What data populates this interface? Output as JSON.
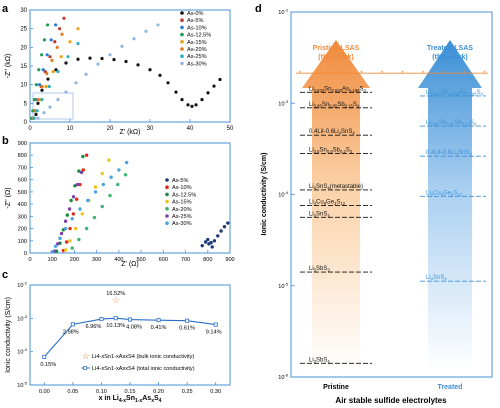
{
  "chart_data": [
    {
      "panel": "a",
      "type": "scatter",
      "xlabel": "Z' (kΩ)",
      "ylabel": "-Z'' (kΩ)",
      "xlim": [
        0,
        50
      ],
      "ylim": [
        0,
        30
      ],
      "xticks": [
        0,
        10,
        20,
        30,
        40,
        50
      ],
      "yticks": [
        0,
        5,
        10,
        15,
        20,
        25,
        30
      ],
      "legend": "top-right",
      "series": [
        {
          "name": "As-0%",
          "color": "#111111",
          "points": [
            [
              1.5,
              2
            ],
            [
              2,
              5
            ],
            [
              3,
              8.5
            ],
            [
              4.5,
              11.5
            ],
            [
              6.5,
              14
            ],
            [
              9,
              15.8
            ],
            [
              12,
              16.8
            ],
            [
              15,
              17.1
            ],
            [
              18,
              17.0
            ],
            [
              21,
              16.7
            ],
            [
              24,
              16.2
            ],
            [
              27,
              15.3
            ],
            [
              30,
              14.0
            ],
            [
              32.5,
              12.5
            ],
            [
              34.5,
              10.5
            ],
            [
              36.5,
              8.0
            ],
            [
              38,
              6.0
            ],
            [
              39.5,
              4.6
            ],
            [
              40.5,
              4.2
            ],
            [
              41.5,
              4.6
            ],
            [
              43,
              6
            ],
            [
              44.5,
              7.8
            ],
            [
              46,
              9.6
            ],
            [
              47.5,
              11.4
            ]
          ]
        },
        {
          "name": "As-5%",
          "color": "#c0392b",
          "points": [
            [
              1,
              1
            ],
            [
              1.4,
              3
            ],
            [
              2,
              6
            ],
            [
              2.8,
              9.5
            ],
            [
              3.8,
              13.5
            ],
            [
              5,
              17.5
            ],
            [
              6.2,
              21.5
            ],
            [
              7.4,
              25
            ],
            [
              8.5,
              27.8
            ]
          ]
        },
        {
          "name": "As-10%",
          "color": "#2a7bd4",
          "points": [
            [
              0.6,
              1
            ],
            [
              1,
              3
            ],
            [
              1.6,
              6
            ],
            [
              2.4,
              10
            ],
            [
              3.3,
              14
            ],
            [
              4.3,
              18
            ],
            [
              5.3,
              22
            ],
            [
              6.4,
              26
            ]
          ]
        },
        {
          "name": "As-12.5%",
          "color": "#1e9e54",
          "points": [
            [
              0.4,
              1
            ],
            [
              0.7,
              3
            ],
            [
              1.1,
              6
            ],
            [
              1.6,
              10
            ],
            [
              2.2,
              14
            ],
            [
              2.9,
              18
            ],
            [
              3.6,
              22
            ],
            [
              4.4,
              26
            ]
          ]
        },
        {
          "name": "As-15%",
          "color": "#e8a317",
          "points": [
            [
              1,
              1
            ],
            [
              1.6,
              3
            ],
            [
              2.6,
              6
            ],
            [
              4,
              9.5
            ],
            [
              5.8,
              13.5
            ],
            [
              7.8,
              17.5
            ],
            [
              10,
              21.5
            ],
            [
              12,
              25
            ]
          ]
        },
        {
          "name": "As-20%",
          "color": "#e07a1f",
          "points": [
            [
              0.8,
              1
            ],
            [
              1.3,
              3
            ],
            [
              2,
              6
            ],
            [
              3,
              9.5
            ],
            [
              4.2,
              13
            ],
            [
              5.5,
              16.5
            ],
            [
              6.8,
              20
            ],
            [
              8,
              23.5
            ]
          ]
        },
        {
          "name": "As-25%",
          "color": "#2bb3c0",
          "points": [
            [
              1,
              1
            ],
            [
              1.8,
              3
            ],
            [
              3,
              6
            ],
            [
              4.8,
              9.5
            ],
            [
              7,
              13.5
            ],
            [
              9.5,
              17.5
            ],
            [
              12,
              21
            ]
          ]
        },
        {
          "name": "As-30%",
          "color": "#8fb7df",
          "points": [
            [
              2,
              1
            ],
            [
              3.5,
              2.5
            ],
            [
              5,
              4
            ],
            [
              7,
              6
            ],
            [
              9,
              8
            ],
            [
              11.5,
              10.5
            ],
            [
              14,
              12.8
            ],
            [
              17,
              15.5
            ],
            [
              20,
              18
            ],
            [
              23,
              20.3
            ],
            [
              26,
              22.3
            ],
            [
              29,
              24.3
            ],
            [
              32,
              26
            ]
          ]
        }
      ]
    },
    {
      "panel": "b",
      "type": "scatter",
      "xlabel": "Z' (Ω)",
      "ylabel": "-Z'' (Ω)",
      "xlim": [
        0,
        900
      ],
      "ylim": [
        0,
        900
      ],
      "xticks": [
        0,
        100,
        200,
        300,
        400,
        500,
        600,
        700,
        800,
        900
      ],
      "yticks": [
        0,
        100,
        200,
        300,
        400,
        500,
        600,
        700,
        800,
        900
      ],
      "legend": "right",
      "series": [
        {
          "name": "As-5%",
          "color": "#1f3b78",
          "points": [
            [
              775,
              60
            ],
            [
              790,
              90
            ],
            [
              805,
              75
            ],
            [
              820,
              50
            ],
            [
              830,
              100
            ],
            [
              845,
              140
            ],
            [
              860,
              180
            ],
            [
              875,
              215
            ],
            [
              890,
              245
            ],
            [
              800,
              110
            ],
            [
              815,
              85
            ]
          ]
        },
        {
          "name": "As-10%",
          "color": "#e3261e",
          "points": [
            [
              150,
              20
            ],
            [
              165,
              90
            ],
            [
              180,
              200
            ],
            [
              195,
              320
            ],
            [
              210,
              440
            ],
            [
              225,
              560
            ],
            [
              240,
              680
            ],
            [
              255,
              800
            ]
          ]
        },
        {
          "name": "As-12.5%",
          "color": "#1d8a3a",
          "points": [
            [
              120,
              15
            ],
            [
              135,
              80
            ],
            [
              150,
              190
            ],
            [
              168,
              310
            ],
            [
              185,
              430
            ],
            [
              202,
              550
            ],
            [
              220,
              670
            ],
            [
              238,
              790
            ]
          ]
        },
        {
          "name": "As-15%",
          "color": "#f2c11a",
          "points": [
            [
              160,
              25
            ],
            [
              180,
              100
            ],
            [
              205,
              200
            ],
            [
              235,
              320
            ],
            [
              265,
              430
            ],
            [
              295,
              540
            ],
            [
              325,
              650
            ],
            [
              355,
              760
            ]
          ]
        },
        {
          "name": "As-20%",
          "color": "#3cb371",
          "points": [
            [
              190,
              40
            ],
            [
              220,
              110
            ],
            [
              255,
              200
            ],
            [
              290,
              290
            ],
            [
              325,
              380
            ],
            [
              360,
              470
            ],
            [
              395,
              560
            ],
            [
              430,
              640
            ]
          ]
        },
        {
          "name": "As-25%",
          "color": "#7e3fa8",
          "points": [
            [
              110,
              15
            ],
            [
              125,
              75
            ],
            [
              142,
              160
            ],
            [
              160,
              260
            ],
            [
              178,
              360
            ],
            [
              196,
              460
            ],
            [
              214,
              560
            ],
            [
              232,
              660
            ]
          ]
        },
        {
          "name": "As-30%",
          "color": "#4aa3df",
          "points": [
            [
              100,
              10
            ],
            [
              115,
              55
            ],
            [
              135,
              120
            ],
            [
              160,
              200
            ],
            [
              190,
              280
            ],
            [
              225,
              360
            ],
            [
              260,
              430
            ],
            [
              295,
              500
            ],
            [
              330,
              560
            ],
            [
              365,
              620
            ],
            [
              400,
              680
            ],
            [
              435,
              740
            ]
          ]
        }
      ]
    },
    {
      "panel": "c",
      "type": "line",
      "xlabel": "x in Li4-xSn1-xAsxS4",
      "ylabel": "Ionic conductivity (S/cm)",
      "xlim": [
        -0.025,
        0.325
      ],
      "ylim_log10": [
        -5,
        -2
      ],
      "yscale": "log",
      "xticks": [
        0.0,
        0.05,
        0.1,
        0.15,
        0.2,
        0.25,
        0.3
      ],
      "yticks": [
        "10-5",
        "10-4",
        "10-3",
        "10-2"
      ],
      "series": [
        {
          "name": "Li4-xSn1-xAsxS4 (total ionic conductivity)",
          "color": "#2a6fc9",
          "x": [
            0.0,
            0.05,
            0.1,
            0.125,
            0.15,
            0.2,
            0.25,
            0.3
          ],
          "y": [
            7e-05,
            0.00066,
            0.00095,
            0.00101,
            0.00092,
            0.00088,
            0.00085,
            0.00065
          ]
        },
        {
          "name": "Li4-xSn1-xAsxS4 (bulk ionic conductivity)",
          "color": "#f39c4a",
          "x": [
            0.125
          ],
          "y": [
            0.0035
          ]
        }
      ],
      "annotations": [
        {
          "text": "0.15%",
          "x": 0.0,
          "y": 7e-05
        },
        {
          "text": "2.98%",
          "x": 0.05,
          "y": 0.00066
        },
        {
          "text": "6.96%",
          "x": 0.1,
          "y": 0.00095
        },
        {
          "text": "16.52%",
          "x": 0.125,
          "y": 0.0035
        },
        {
          "text": "10.13%",
          "x": 0.125,
          "y": 0.00101
        },
        {
          "text": "4.08%",
          "x": 0.15,
          "y": 0.00092
        },
        {
          "text": "0.41%",
          "x": 0.2,
          "y": 0.00088
        },
        {
          "text": "0.61%",
          "x": 0.25,
          "y": 0.00085
        },
        {
          "text": "9.14%",
          "x": 0.3,
          "y": 0.00065
        }
      ]
    },
    {
      "panel": "d",
      "type": "bar",
      "ylabel": "Ionic conductivity (S/cm)",
      "xlabel": "Air stable sulfide electrolytes",
      "yscale": "log",
      "ylim_log10": [
        -6,
        -2
      ],
      "yticks": [
        "10-6",
        "10-5",
        "10-4",
        "10-3",
        "10-2"
      ],
      "categories": [
        "Pristine",
        "Treated"
      ],
      "arrow_labels": [
        "Pristine-LSAS (this work)",
        "Treated-LSAS (this work)"
      ],
      "star_value_log10": -2.67,
      "pristine_entries": [
        {
          "label": "Li3.833Sn0.833As0.166S4",
          "log10": -2.88
        },
        {
          "label": "Li3.85Sn0.85Sb0.15S4",
          "log10": -3.05
        },
        {
          "label": "0.4LiI-0.6Li4SnS4",
          "log10": -3.35
        },
        {
          "label": "Li3.8Sn0.8Sb0.2S4",
          "log10": -3.55
        },
        {
          "label": "Li4SnS4(metastable)",
          "log10": -3.95
        },
        {
          "label": "Li4Cu8Ge3S12",
          "log10": -4.12
        },
        {
          "label": "Li4SnS4",
          "log10": -4.25
        },
        {
          "label": "Li3SbS3",
          "log10": -4.85
        },
        {
          "label": "Li3SbS4",
          "log10": -5.85
        }
      ],
      "treated_entries": [
        {
          "label": "Li3.833Sn0.833As0.166S4",
          "log10": -2.92
        },
        {
          "label": "Li3.85Sn0.85Sb0.15S4",
          "log10": -3.25
        },
        {
          "label": "0.4LiI-0.6Li4SnS4",
          "log10": -3.58
        },
        {
          "label": "Li4Cu8Ge3S12",
          "log10": -4.02
        },
        {
          "label": "Li4SnS4",
          "log10": -4.95
        }
      ]
    }
  ],
  "labels": {
    "panel_a": "a",
    "panel_b": "b",
    "panel_c": "c",
    "panel_d": "d",
    "a_xlabel": "Z' (kΩ)",
    "a_ylabel": "-Z'' (kΩ)",
    "b_xlabel": "Z' (Ω)",
    "b_ylabel": "-Z'' (Ω)",
    "c_ylabel": "Ionic conductivity (S/cm)",
    "c_xlabel_prefix": "x  in Li",
    "c_legend_bulk": "Li4-xSn1-xAsxS4 (bulk ionic conductivity)",
    "c_legend_total": "Li4-xSn1-xAsxS4 (total ionic conductivity)",
    "d_ylabel": "Ionic conductivity (S/cm)",
    "d_xlabel": "Air stable sulfide electrolytes",
    "d_pristine_title1": "Pristine-LSAS",
    "d_pristine_title2": "(this work)",
    "d_treated_title1": "Treated-LSAS",
    "d_treated_title2": "(this work)",
    "d_cat_pristine": "Pristine",
    "d_cat_treated": "Treated"
  },
  "colors": {
    "axis": "#4a90d9",
    "pristine_arrow": "#f08a3c",
    "treated_arrow": "#3b8fd6",
    "star": "#f08a3c"
  }
}
